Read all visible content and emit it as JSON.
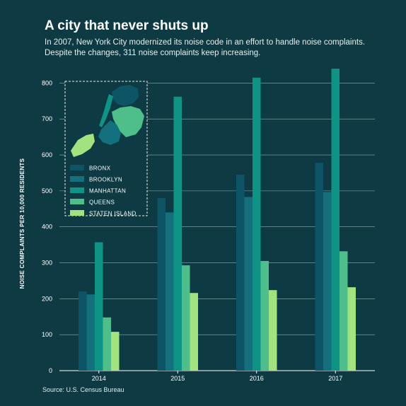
{
  "header": {
    "title": "A city that never shuts up",
    "subtitle_line1": "In 2007, New York City modernized its noise code in an effort to handle noise complaints.",
    "subtitle_line2": "Despite the changes, 311 noise complaints keep increasing."
  },
  "source": "Source:  U.S. Census Bureau",
  "chart_data": {
    "type": "bar",
    "title": "A city that never shuts up",
    "ylabel": "NOISE COMPLAINTS PER 10,000 RESIDENTS",
    "xlabel": "",
    "categories": [
      "2014",
      "2015",
      "2016",
      "2017"
    ],
    "ylim": [
      0,
      850
    ],
    "yticks": [
      0,
      100,
      200,
      300,
      400,
      500,
      600,
      700,
      800
    ],
    "grid": true,
    "legend_position": "top-left",
    "series": [
      {
        "name": "BRONX",
        "color": "#0d5566",
        "values": [
          220,
          480,
          545,
          578
        ]
      },
      {
        "name": "BROOKLYN",
        "color": "#13707c",
        "values": [
          212,
          440,
          483,
          497
        ]
      },
      {
        "name": "MANHATTAN",
        "color": "#0e9485",
        "values": [
          357,
          762,
          815,
          840
        ]
      },
      {
        "name": "QUEENS",
        "color": "#4ebf8a",
        "values": [
          148,
          293,
          305,
          332
        ]
      },
      {
        "name": "STATEN ISLAND",
        "color": "#a3e37f",
        "values": [
          108,
          216,
          224,
          232
        ]
      }
    ]
  },
  "inset_map": {
    "colors": {
      "bronx": "#0d5566",
      "brooklyn": "#13707c",
      "manhattan": "#0e9485",
      "queens": "#4ebf8a",
      "staten_island": "#a3e37f"
    }
  }
}
